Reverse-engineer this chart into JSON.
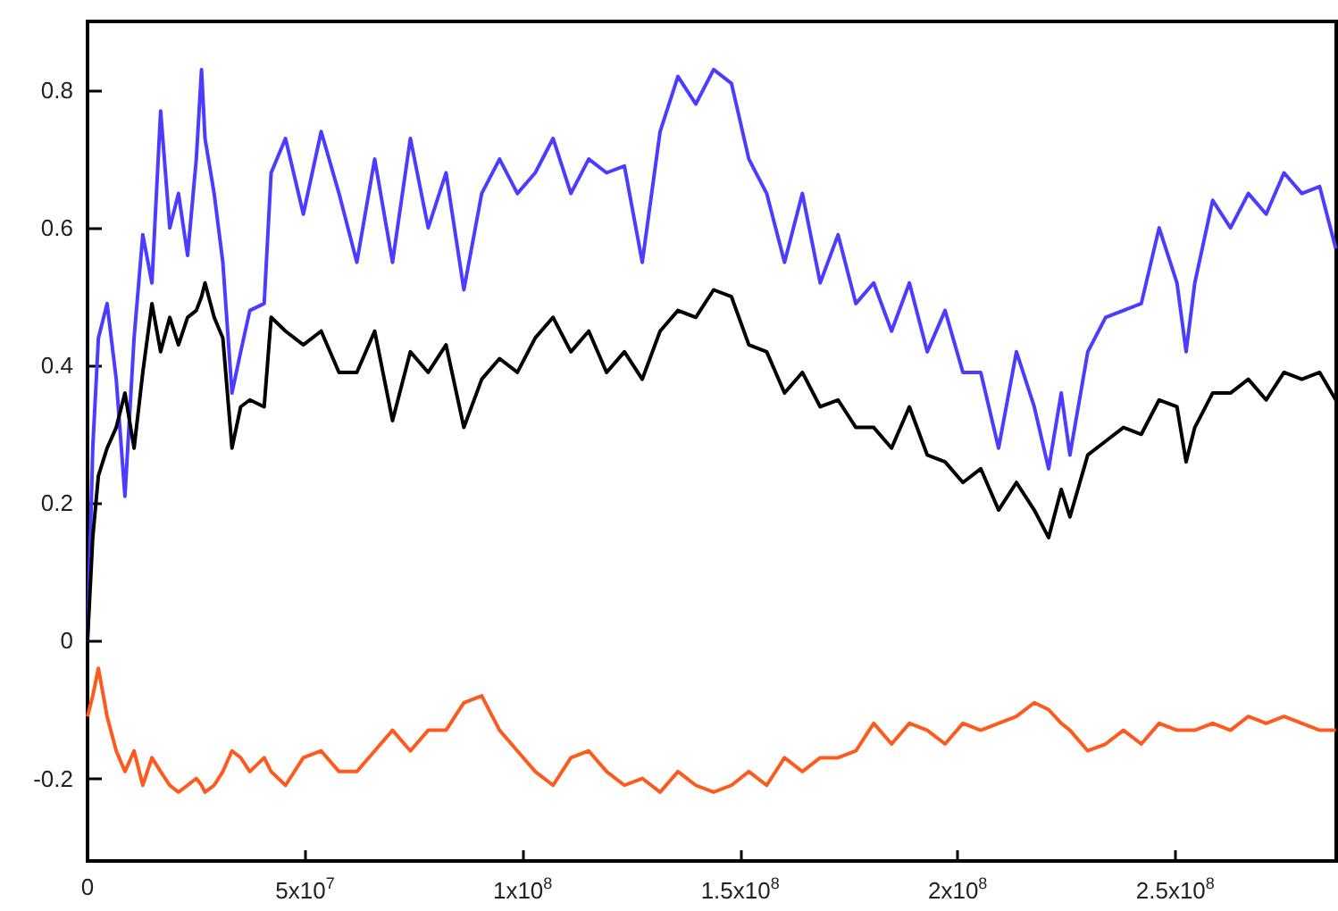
{
  "chart_data": {
    "type": "line",
    "marker": "none",
    "line_style": "solid",
    "grid": false,
    "x": [
      0,
      1200000.0,
      2500000.0,
      4500000.0,
      6600000.0,
      8600000.0,
      10700000.0,
      12700000.0,
      14800000.0,
      16800000.0,
      18900000.0,
      20900000.0,
      23000000.0,
      25000000.0,
      26200000.0,
      27000000.0,
      29100000.0,
      31100000.0,
      33200000.0,
      35200000.0,
      37300000.0,
      40600000.0,
      42200000.0,
      45500000.0,
      49600000.0,
      53700000.0,
      57800000.0,
      61900000.0,
      66000000.0,
      70100000.0,
      74200000.0,
      78300000.0,
      82400000.0,
      86500000.0,
      90600000.0,
      94700000.0,
      98800000.0,
      102900000.0,
      107000000.0,
      111100000.0,
      115200000.0,
      119300000.0,
      123400000.0,
      127500000.0,
      131600000.0,
      135700000.0,
      139800000.0,
      143900000.0,
      148000000.0,
      152000000.0,
      156100000.0,
      160200000.0,
      164300000.0,
      168400000.0,
      172500000.0,
      176600000.0,
      180700000.0,
      184800000.0,
      188900000.0,
      193000000.0,
      197100000.0,
      201200000.0,
      205300000.0,
      209400000.0,
      213500000.0,
      217600000.0,
      220900000.0,
      223800000.0,
      225800000.0,
      229900000.0,
      234000000.0,
      238100000.0,
      242200000.0,
      246300000.0,
      250400000.0,
      252500000.0,
      254500000.0,
      258600000.0,
      262700000.0,
      266800000.0,
      270900000.0,
      275000000.0,
      279100000.0,
      283200000.0,
      286900000.0
    ],
    "series": [
      {
        "color": "#4b3cff",
        "values": [
          0.0,
          0.28,
          0.44,
          0.49,
          0.38,
          0.21,
          0.44,
          0.59,
          0.52,
          0.77,
          0.6,
          0.65,
          0.56,
          0.7,
          0.83,
          0.73,
          0.65,
          0.55,
          0.36,
          0.42,
          0.48,
          0.49,
          0.68,
          0.73,
          0.62,
          0.74,
          0.65,
          0.55,
          0.7,
          0.55,
          0.73,
          0.6,
          0.68,
          0.51,
          0.65,
          0.7,
          0.65,
          0.68,
          0.73,
          0.65,
          0.7,
          0.68,
          0.69,
          0.55,
          0.74,
          0.82,
          0.78,
          0.83,
          0.81,
          0.7,
          0.65,
          0.55,
          0.65,
          0.52,
          0.59,
          0.49,
          0.52,
          0.45,
          0.52,
          0.42,
          0.48,
          0.39,
          0.39,
          0.28,
          0.42,
          0.34,
          0.25,
          0.36,
          0.27,
          0.42,
          0.47,
          0.48,
          0.49,
          0.6,
          0.52,
          0.42,
          0.52,
          0.64,
          0.6,
          0.65,
          0.62,
          0.68,
          0.65,
          0.66,
          0.57
        ]
      },
      {
        "color": "#000000",
        "values": [
          0.0,
          0.15,
          0.24,
          0.28,
          0.31,
          0.36,
          0.28,
          0.39,
          0.49,
          0.42,
          0.47,
          0.43,
          0.47,
          0.48,
          0.5,
          0.52,
          0.47,
          0.44,
          0.28,
          0.34,
          0.35,
          0.34,
          0.47,
          0.45,
          0.43,
          0.45,
          0.39,
          0.39,
          0.45,
          0.32,
          0.42,
          0.39,
          0.43,
          0.31,
          0.38,
          0.41,
          0.39,
          0.44,
          0.47,
          0.42,
          0.45,
          0.39,
          0.42,
          0.38,
          0.45,
          0.48,
          0.47,
          0.51,
          0.5,
          0.43,
          0.42,
          0.36,
          0.39,
          0.34,
          0.35,
          0.31,
          0.31,
          0.28,
          0.34,
          0.27,
          0.26,
          0.23,
          0.25,
          0.19,
          0.23,
          0.19,
          0.15,
          0.22,
          0.18,
          0.27,
          0.29,
          0.31,
          0.3,
          0.35,
          0.34,
          0.26,
          0.31,
          0.36,
          0.36,
          0.38,
          0.35,
          0.39,
          0.38,
          0.39,
          0.35
        ]
      },
      {
        "color": "#ff5a1e",
        "values": [
          -0.11,
          -0.08,
          -0.04,
          -0.11,
          -0.16,
          -0.19,
          -0.16,
          -0.21,
          -0.17,
          -0.19,
          -0.21,
          -0.22,
          -0.21,
          -0.2,
          -0.21,
          -0.22,
          -0.21,
          -0.19,
          -0.16,
          -0.17,
          -0.19,
          -0.17,
          -0.19,
          -0.21,
          -0.17,
          -0.16,
          -0.19,
          -0.19,
          -0.16,
          -0.13,
          -0.16,
          -0.13,
          -0.13,
          -0.09,
          -0.08,
          -0.13,
          -0.16,
          -0.19,
          -0.21,
          -0.17,
          -0.16,
          -0.19,
          -0.21,
          -0.2,
          -0.22,
          -0.19,
          -0.21,
          -0.22,
          -0.21,
          -0.19,
          -0.21,
          -0.17,
          -0.19,
          -0.17,
          -0.17,
          -0.16,
          -0.12,
          -0.15,
          -0.12,
          -0.13,
          -0.15,
          -0.12,
          -0.13,
          -0.12,
          -0.11,
          -0.09,
          -0.1,
          -0.12,
          -0.13,
          -0.16,
          -0.15,
          -0.13,
          -0.15,
          -0.12,
          -0.13,
          -0.13,
          -0.13,
          -0.12,
          -0.13,
          -0.11,
          -0.12,
          -0.11,
          -0.12,
          -0.13,
          -0.13
        ]
      }
    ],
    "xlim": [
      0,
      287000000.0
    ],
    "xticks": [
      0,
      {
        "value": 50000000.0,
        "label": "5x10$^{7}$"
      },
      {
        "value": 100000000.0,
        "label": "1x10$^{8}$"
      },
      {
        "value": 150000000.0,
        "label": "1.5x10$^{8}$"
      },
      {
        "value": 200000000.0,
        "label": "2x10$^{8}$"
      },
      {
        "value": 250000000.0,
        "label": "2.5x10$^{8}$"
      }
    ],
    "ylim": [
      -0.32,
      0.9
    ],
    "yticks": [
      -0.2,
      0,
      0.2,
      0.4,
      0.6,
      0.8
    ]
  }
}
